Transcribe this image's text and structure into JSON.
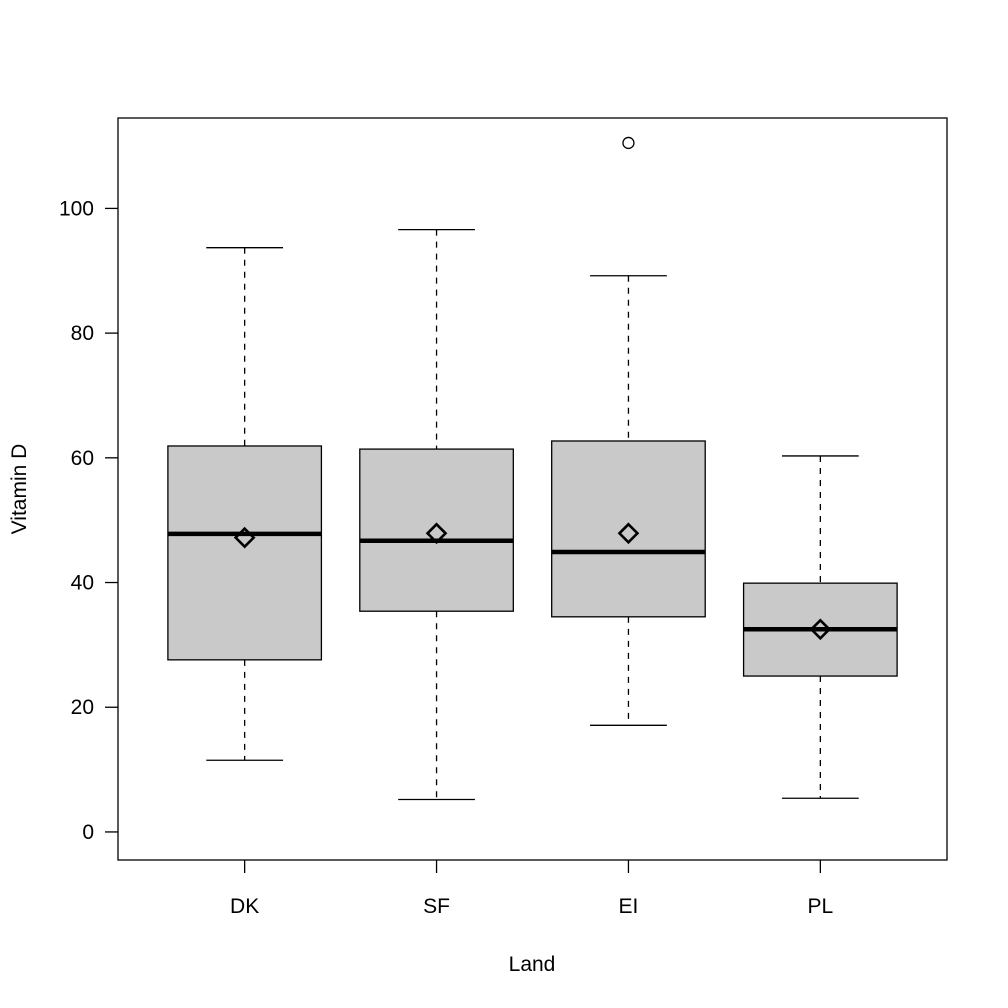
{
  "chart_data": {
    "type": "boxplot",
    "xlabel": "Land",
    "ylabel": "Vitamin D",
    "categories": [
      "DK",
      "SF",
      "EI",
      "PL"
    ],
    "ylim": [
      -4.5,
      114.5
    ],
    "yticks": [
      0,
      20,
      40,
      60,
      80,
      100
    ],
    "boxes": [
      {
        "label": "DK",
        "whisker_low": 11.5,
        "q1": 27.6,
        "median": 47.8,
        "q3": 61.9,
        "whisker_high": 93.7,
        "mean": 47.2,
        "outliers": []
      },
      {
        "label": "SF",
        "whisker_low": 5.2,
        "q1": 35.4,
        "median": 46.7,
        "q3": 61.4,
        "whisker_high": 96.6,
        "mean": 47.9,
        "outliers": []
      },
      {
        "label": "EI",
        "whisker_low": 17.1,
        "q1": 34.5,
        "median": 44.9,
        "q3": 62.7,
        "whisker_high": 89.2,
        "mean": 47.9,
        "outliers": [
          110.5
        ]
      },
      {
        "label": "PL",
        "whisker_low": 5.4,
        "q1": 25.0,
        "median": 32.5,
        "q3": 39.9,
        "whisker_high": 60.3,
        "mean": 32.5,
        "outliers": []
      }
    ],
    "box_fill": "#c9c9c9",
    "grid": false,
    "legend": "none"
  }
}
